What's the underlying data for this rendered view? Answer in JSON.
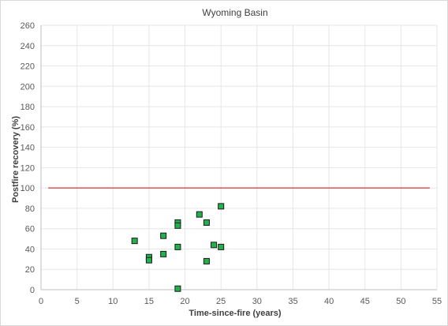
{
  "chart_data": {
    "type": "scatter",
    "title": "Wyoming Basin",
    "xlabel": "Time-since-fire (years)",
    "ylabel": "Postfire recovery (%)",
    "xlim": [
      0,
      55
    ],
    "ylim": [
      0,
      260
    ],
    "xticks": [
      0,
      5,
      10,
      15,
      20,
      25,
      30,
      35,
      40,
      45,
      50,
      55
    ],
    "yticks": [
      0,
      20,
      40,
      60,
      80,
      100,
      120,
      140,
      160,
      180,
      200,
      220,
      240,
      260
    ],
    "grid": true,
    "legend": "none",
    "marker": {
      "shape": "square",
      "fill": "#22b14c",
      "edge": "#1a1a1a"
    },
    "reference_line": {
      "y": 100,
      "x_range": [
        1,
        54
      ],
      "color": "#e05050"
    },
    "points": [
      {
        "x": 13,
        "y": 48
      },
      {
        "x": 15,
        "y": 32
      },
      {
        "x": 15,
        "y": 29
      },
      {
        "x": 17,
        "y": 53
      },
      {
        "x": 17,
        "y": 35
      },
      {
        "x": 19,
        "y": 66
      },
      {
        "x": 19,
        "y": 63
      },
      {
        "x": 19,
        "y": 42
      },
      {
        "x": 19,
        "y": 1
      },
      {
        "x": 22,
        "y": 74
      },
      {
        "x": 23,
        "y": 66
      },
      {
        "x": 23,
        "y": 28
      },
      {
        "x": 24,
        "y": 44
      },
      {
        "x": 25,
        "y": 82
      },
      {
        "x": 25,
        "y": 42
      }
    ]
  }
}
